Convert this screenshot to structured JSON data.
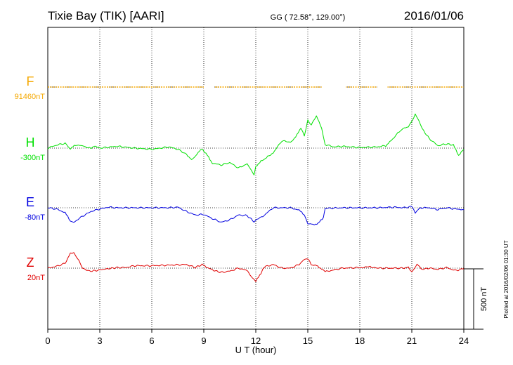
{
  "header": {
    "station": "Tixie Bay (TIK)  [AARI]",
    "coords": "GG ( 72.58°, 129.00°)",
    "date": "2016/01/06"
  },
  "side_note": "Plotted at 2016/02/06 01:30 UT",
  "chart_data": {
    "type": "line",
    "xlabel": "U T (hour)",
    "xlim": [
      0,
      24
    ],
    "x_ticks": [
      0,
      3,
      6,
      9,
      12,
      15,
      18,
      21,
      24
    ],
    "x_tick_labels": [
      "0",
      "3",
      "6",
      "9",
      "12",
      "15",
      "18",
      "21",
      "24"
    ],
    "scale_bar": {
      "value": 500,
      "label": "500 nT"
    },
    "series": [
      {
        "name": "F",
        "baseline_label": "91460nT",
        "color": "#f5a800",
        "dashed": true,
        "gaps": [
          [
            9.0,
            9.6
          ],
          [
            15.8,
            17.2
          ],
          [
            19.0,
            19.6
          ]
        ],
        "x": [
          0,
          24
        ],
        "y": [
          0,
          0
        ]
      },
      {
        "name": "H",
        "baseline_label": "-300nT",
        "color": "#00e000",
        "x": [
          0,
          0.5,
          1.0,
          1.3,
          1.6,
          2.0,
          2.5,
          2.7,
          3.0,
          4.0,
          5.0,
          6.0,
          7.0,
          7.5,
          8.0,
          8.3,
          8.6,
          8.9,
          9.2,
          9.5,
          10.0,
          10.5,
          11.0,
          11.5,
          11.9,
          12.0,
          12.3,
          13.0,
          13.5,
          14.0,
          14.3,
          14.6,
          14.8,
          15.0,
          15.2,
          15.5,
          15.8,
          16.0,
          16.5,
          17.0,
          18.0,
          19.0,
          19.5,
          19.8,
          20.0,
          20.2,
          20.5,
          20.8,
          21.0,
          21.2,
          21.4,
          21.6,
          22.0,
          22.5,
          23.0,
          23.4,
          23.7,
          24.0
        ],
        "y": [
          0,
          25,
          40,
          -5,
          25,
          20,
          -5,
          20,
          0,
          15,
          0,
          -10,
          10,
          -10,
          -50,
          -100,
          -50,
          -5,
          -60,
          -125,
          -140,
          -120,
          -165,
          -130,
          -220,
          -150,
          -110,
          -40,
          60,
          50,
          90,
          170,
          100,
          230,
          190,
          270,
          160,
          30,
          10,
          15,
          5,
          10,
          20,
          60,
          90,
          130,
          160,
          180,
          220,
          280,
          230,
          160,
          80,
          20,
          35,
          25,
          -60,
          -10
        ]
      },
      {
        "name": "E",
        "baseline_label": "-80nT",
        "color": "#0000e0",
        "x": [
          0,
          0.5,
          1.0,
          1.3,
          1.5,
          2.0,
          2.5,
          3.0,
          3.5,
          4.0,
          5.0,
          6.0,
          7.0,
          7.5,
          8.0,
          8.5,
          9.0,
          9.5,
          10.0,
          10.5,
          11.0,
          11.5,
          11.9,
          12.5,
          13.0,
          13.5,
          14.0,
          14.5,
          14.8,
          15.0,
          15.3,
          15.6,
          15.9,
          16.0,
          17.0,
          18.0,
          19.0,
          20.0,
          20.5,
          21.0,
          21.2,
          21.5,
          22.0,
          22.5,
          23.0,
          23.5,
          24.0
        ],
        "y": [
          0,
          -10,
          -40,
          -110,
          -120,
          -70,
          -30,
          -10,
          5,
          0,
          0,
          0,
          0,
          5,
          -30,
          -60,
          -55,
          -90,
          -120,
          -100,
          -60,
          -65,
          -115,
          -60,
          0,
          0,
          0,
          -20,
          -60,
          -130,
          -140,
          -130,
          -80,
          -5,
          0,
          0,
          0,
          5,
          0,
          10,
          -40,
          0,
          0,
          -15,
          0,
          -10,
          -15
        ]
      },
      {
        "name": "Z",
        "baseline_label": "20nT",
        "color": "#e00000",
        "x": [
          0,
          0.5,
          1.0,
          1.3,
          1.5,
          1.8,
          2.0,
          2.4,
          2.8,
          3.2,
          4.0,
          4.5,
          5.0,
          6.0,
          7.0,
          8.0,
          8.5,
          8.9,
          9.2,
          9.6,
          10.0,
          10.5,
          11.0,
          11.5,
          11.8,
          12.0,
          12.3,
          12.5,
          13.0,
          13.5,
          14.0,
          14.5,
          14.8,
          15.0,
          15.2,
          15.5,
          15.8,
          16.0,
          17.0,
          18.0,
          18.6,
          19.0,
          20.0,
          20.5,
          20.8,
          21.0,
          21.3,
          21.6,
          22.0,
          22.5,
          23.0,
          23.5,
          24.0
        ],
        "y": [
          0,
          15,
          40,
          120,
          130,
          60,
          0,
          -25,
          -20,
          -10,
          5,
          5,
          20,
          20,
          25,
          30,
          5,
          30,
          5,
          -20,
          -35,
          -25,
          0,
          -20,
          -80,
          -110,
          -40,
          10,
          30,
          0,
          0,
          30,
          70,
          80,
          30,
          20,
          -5,
          -30,
          0,
          5,
          10,
          0,
          0,
          0,
          5,
          -30,
          30,
          -10,
          0,
          -10,
          5,
          -20,
          -5
        ]
      }
    ]
  }
}
